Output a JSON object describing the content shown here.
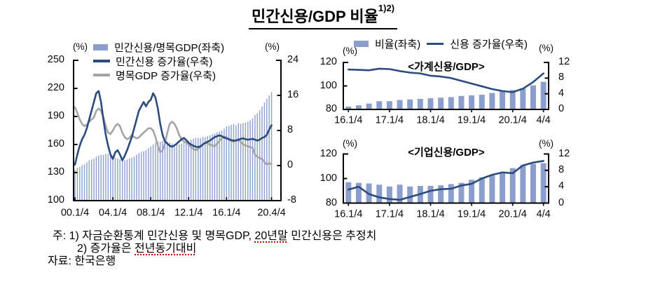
{
  "title": {
    "text": "민간신용/GDP 비율",
    "footnote_marker": "1)2)"
  },
  "unit_label": "(%)",
  "right_panel_legend": [
    "비율(좌축)",
    "신용 증가율(우축)"
  ],
  "colors": {
    "bar": "#8C9FCC",
    "credit_line": "#2C4B7E",
    "gdp_line": "#A5A5A5",
    "axis": "#000000",
    "spellcheck_mark": "#C00000"
  },
  "notes": {
    "label": "주:",
    "items": [
      {
        "prefix": "1) 자금순환통계 민간신용 및 명목GDP, ",
        "marked": "20년말",
        "suffix": " 민간신용은 추정치"
      },
      {
        "prefix": "2) 증가율은 ",
        "marked": "전년동기대비",
        "suffix": ""
      }
    ],
    "source_label": "자료:",
    "source": "한국은행"
  },
  "chart_data": [
    {
      "name": "민간신용/GDP 비율(전체)",
      "type": "bar+line",
      "legend": [
        "민간신용/명목GDP(좌축)",
        "민간신용 증가율(우축)",
        "명목GDP 증가율(우축)"
      ],
      "left_axis": {
        "unit": "(%)",
        "range": [
          100,
          250
        ],
        "ticks": [
          250,
          220,
          190,
          160,
          130,
          100
        ]
      },
      "right_axis": {
        "unit": "(%)",
        "range": [
          -8,
          24
        ],
        "ticks": [
          24,
          16,
          8,
          0,
          -8
        ]
      },
      "x_ticklabels": [
        "00.1/4",
        "04.1/4",
        "08.1/4",
        "12.1/4",
        "16.1/4",
        "20.4/4"
      ],
      "x_tick_quarters": [
        0,
        16,
        32,
        48,
        64,
        83
      ],
      "x_range_note": "quarterly, 2000.1/4 - 2020.4/4",
      "bars": {
        "name": "민간신용/명목GDP(좌축)",
        "axis": "left",
        "values": [
          133,
          135,
          136,
          138,
          139,
          141,
          143,
          144,
          145,
          147,
          148,
          149,
          149,
          150,
          150,
          149,
          148,
          146,
          145,
          144,
          143,
          143,
          144,
          145,
          146,
          147,
          149,
          151,
          152,
          153,
          154,
          156,
          158,
          160,
          162,
          163,
          163,
          164,
          164,
          163,
          162,
          161,
          160,
          160,
          160,
          161,
          162,
          163,
          164,
          165,
          166,
          167,
          167,
          167,
          168,
          168,
          169,
          170,
          171,
          172,
          173,
          174,
          175,
          177,
          179.5,
          180,
          181,
          182,
          180.5,
          183,
          182,
          183,
          183.5,
          184.5,
          186,
          188,
          191.5,
          193.5,
          196.5,
          200.5,
          205,
          209,
          212.5,
          216
        ]
      },
      "series": [
        {
          "name": "민간신용 증가율(우축)",
          "axis": "right",
          "color_key": "credit_line",
          "values": [
            0.2,
            2.5,
            4.5,
            6,
            7,
            8.5,
            10.5,
            12.5,
            14.5,
            16.5,
            17,
            14.5,
            10.5,
            7,
            4.5,
            2.5,
            1.5,
            3,
            3.5,
            2.5,
            1.2,
            2.2,
            3.5,
            5,
            6.5,
            8.5,
            10.5,
            12.5,
            13.5,
            14.5,
            13.5,
            14.5,
            15,
            16.5,
            15.5,
            13,
            9.5,
            7,
            5.5,
            5,
            4.5,
            4.3,
            4.6,
            5,
            5.5,
            6,
            6.3,
            5.8,
            5.2,
            4.8,
            4.5,
            4.3,
            4.2,
            4.4,
            4.8,
            5.2,
            5.4,
            5.7,
            6.1,
            6.5,
            6.7,
            6.9,
            6.7,
            6.4,
            6.2,
            6,
            5.8,
            5.7,
            5.7,
            5.9,
            6.1,
            6.2,
            6,
            5.9,
            6,
            6.1,
            5.9,
            5.7,
            5.9,
            6.3,
            6.5,
            7,
            8.2,
            9.2
          ]
        },
        {
          "name": "명목GDP 증가율(우축)",
          "axis": "right",
          "color_key": "gdp_line",
          "values": [
            13.3,
            12,
            10.5,
            9.5,
            9,
            9.3,
            10,
            10.5,
            11,
            12.5,
            13,
            12.5,
            11,
            9,
            7.5,
            7.2,
            8,
            9,
            9.5,
            9,
            7.5,
            6.5,
            6,
            6.3,
            7,
            6.5,
            6.2,
            6.4,
            7,
            7.5,
            8,
            8.5,
            8.5,
            8,
            6.5,
            4.5,
            3,
            3.5,
            5,
            7.5,
            9.5,
            10,
            9.5,
            8.5,
            7,
            6,
            5.5,
            5.2,
            4.8,
            4.2,
            3.8,
            3.5,
            3.8,
            4.2,
            4.8,
            5.2,
            5,
            4.8,
            4.6,
            4.4,
            5,
            5.6,
            6.2,
            6.6,
            6.4,
            6,
            5.6,
            5.4,
            5.8,
            6,
            5.4,
            4.8,
            4.6,
            4.4,
            4.2,
            4,
            2.5,
            2,
            1.7,
            1.5,
            0.8,
            0.2,
            0.6,
            0.3
          ]
        }
      ]
    },
    {
      "name": "가계신용/GDP",
      "title": "<가계신용/GDP>",
      "type": "bar+line",
      "left_axis": {
        "unit": "(%)",
        "range": [
          80,
          120
        ],
        "ticks": [
          120,
          100,
          80
        ]
      },
      "right_axis": {
        "unit": "(%)",
        "range": [
          0,
          12
        ],
        "ticks": [
          12,
          8,
          4,
          0
        ]
      },
      "x_ticklabels": [
        "16.1/4",
        "17.1/4",
        "18.1/4",
        "19.1/4",
        "20.1/4",
        "4/4"
      ],
      "x_tick_quarters": [
        0,
        4,
        8,
        12,
        16,
        19
      ],
      "bars": {
        "name": "비율(좌축)",
        "axis": "left",
        "values": [
          82.5,
          83.5,
          85,
          87,
          87,
          88,
          88.5,
          89,
          89.5,
          90,
          90.5,
          91.5,
          92,
          92.5,
          94,
          95.5,
          96.5,
          98,
          100.5,
          103.5
        ]
      },
      "series": [
        {
          "name": "신용 증가율(우축)",
          "axis": "right",
          "color_key": "credit_line",
          "values": [
            10.2,
            10.1,
            10,
            10.4,
            10.3,
            9.8,
            9.4,
            9.2,
            8.6,
            8.4,
            8,
            7.3,
            6.6,
            5.9,
            5.2,
            4.7,
            4.4,
            5.3,
            7,
            9.2
          ]
        }
      ]
    },
    {
      "name": "기업신용/GDP",
      "title": "<기업신용/GDP>",
      "type": "bar+line",
      "left_axis": {
        "unit": "(%)",
        "range": [
          80,
          120
        ],
        "ticks": [
          120,
          100,
          80
        ]
      },
      "right_axis": {
        "unit": "(%)",
        "range": [
          0,
          12
        ],
        "ticks": [
          12,
          8,
          4,
          0
        ]
      },
      "x_ticklabels": [
        "16.1/4",
        "17.1/4",
        "18.1/4",
        "19.1/4",
        "20.1/4",
        "4/4"
      ],
      "x_tick_quarters": [
        0,
        4,
        8,
        12,
        16,
        19
      ],
      "bars": {
        "name": "비율(좌축)",
        "axis": "left",
        "values": [
          97,
          96.5,
          96,
          95,
          93.5,
          95,
          93.5,
          94,
          94,
          94.5,
          95.5,
          96.5,
          99,
          101,
          102.5,
          105,
          108.5,
          111,
          112,
          112.5
        ]
      },
      "series": [
        {
          "name": "신용 증가율(우축)",
          "axis": "right",
          "color_key": "credit_line",
          "values": [
            3.3,
            4,
            2.2,
            1.4,
            1,
            0.8,
            1.5,
            2.2,
            3,
            3.4,
            3.5,
            4.3,
            4.7,
            6,
            6.9,
            7.5,
            7.3,
            9.2,
            9.9,
            10.3
          ]
        }
      ]
    }
  ]
}
